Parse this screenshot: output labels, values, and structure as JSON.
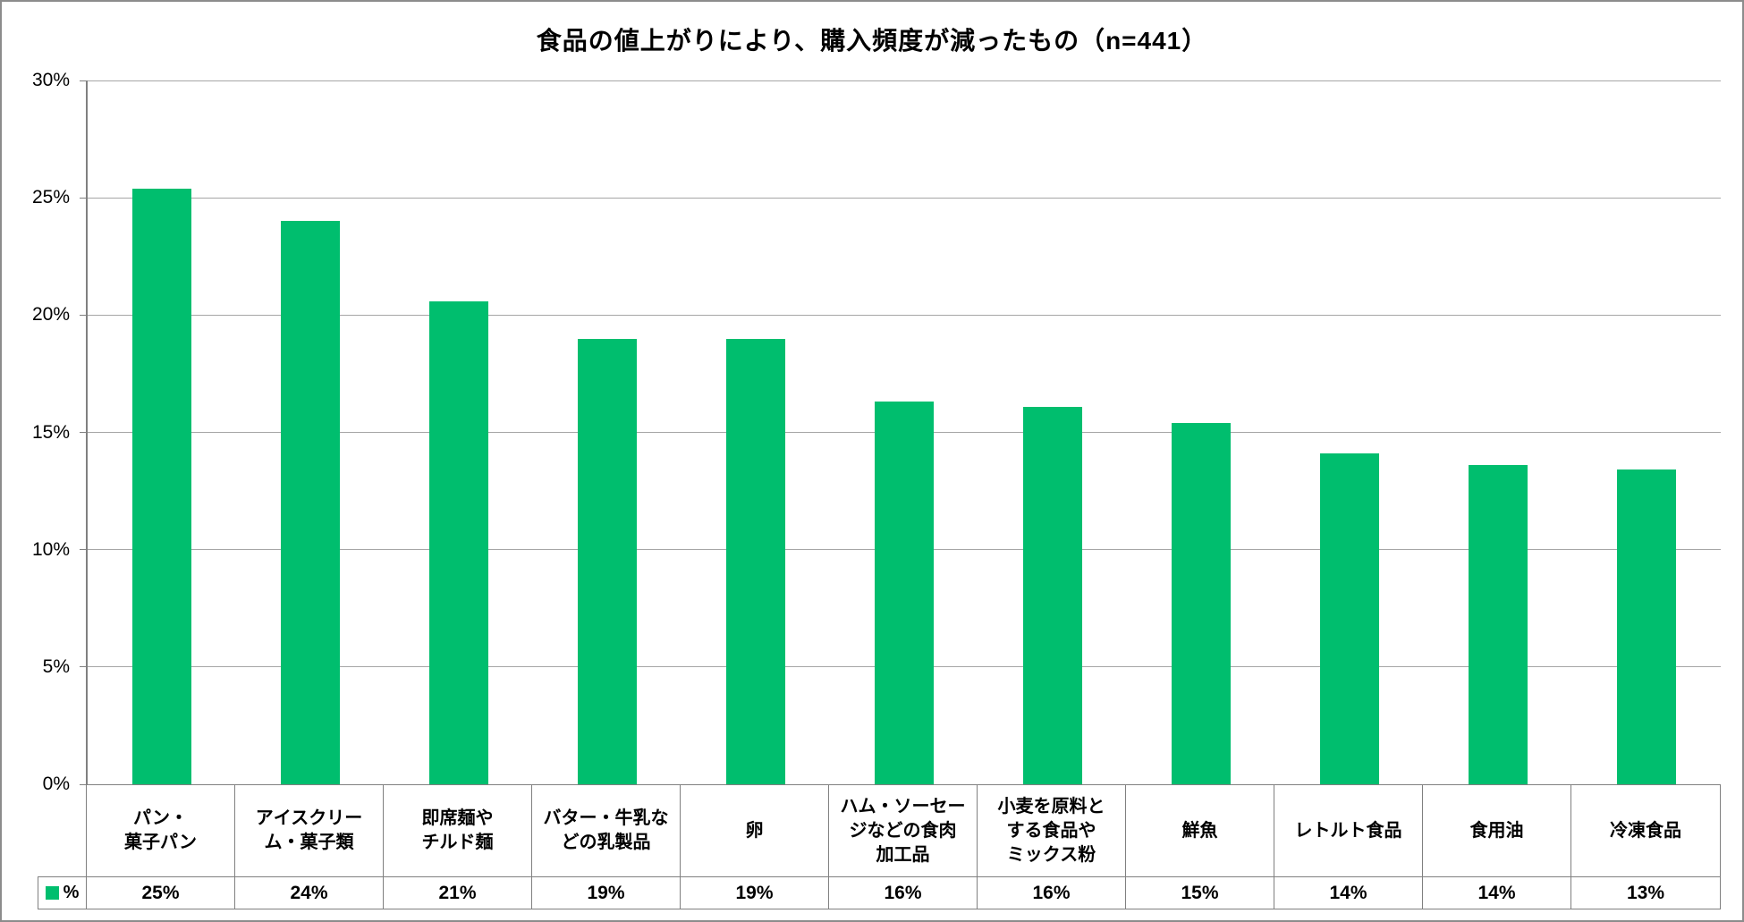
{
  "chart_data": {
    "type": "bar",
    "title": "食品の値上がりにより、購入頻度が減ったもの（n=441）",
    "series_name": "%",
    "categories": [
      "パン・菓子パン",
      "アイスクリーム・菓子類",
      "即席麺やチルド麺",
      "バター・牛乳などの乳製品",
      "卵",
      "ハム・ソーセージなどの食肉加工品",
      "小麦を原料とする食品やミックス粉",
      "鮮魚",
      "レトルト食品",
      "食用油",
      "冷凍食品"
    ],
    "category_lines": [
      [
        "パン・",
        "菓子パン"
      ],
      [
        "アイスクリー",
        "ム・菓子類"
      ],
      [
        "即席麺や",
        "チルド麺"
      ],
      [
        "バター・牛乳な",
        "どの乳製品"
      ],
      [
        "卵"
      ],
      [
        "ハム・ソーセー",
        "ジなどの食肉",
        "加工品"
      ],
      [
        "小麦を原料と",
        "する食品や",
        "ミックス粉"
      ],
      [
        "鮮魚"
      ],
      [
        "レトルト食品"
      ],
      [
        "食用油"
      ],
      [
        "冷凍食品"
      ]
    ],
    "values": [
      25.4,
      24.0,
      20.6,
      19.0,
      19.0,
      16.3,
      16.1,
      15.4,
      14.1,
      13.6,
      13.4
    ],
    "value_labels": [
      "25%",
      "24%",
      "21%",
      "19%",
      "19%",
      "16%",
      "16%",
      "15%",
      "14%",
      "14%",
      "13%"
    ],
    "ylim": [
      0,
      30
    ],
    "y_ticks": [
      {
        "label": "30%",
        "value": 30
      },
      {
        "label": "25%",
        "value": 25
      },
      {
        "label": "20%",
        "value": 20
      },
      {
        "label": "15%",
        "value": 15
      },
      {
        "label": "10%",
        "value": 10
      },
      {
        "label": "5%",
        "value": 5
      },
      {
        "label": "0%",
        "value": 0
      }
    ],
    "grid": true,
    "legend_position": "bottom-left-table",
    "bar_color": "#00be6e",
    "gridline_color": "#a6a6a6",
    "border_color": "#808080"
  }
}
